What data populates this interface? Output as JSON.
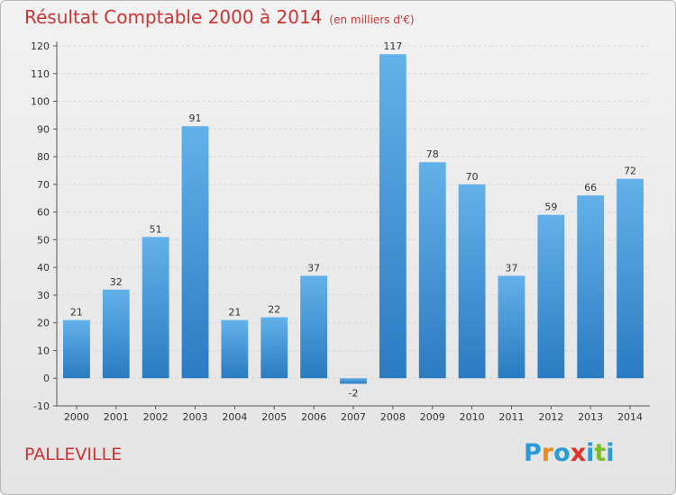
{
  "header": {
    "title": "Résultat Comptable 2000 à 2014",
    "unit": "(en milliers d'€)"
  },
  "footer": {
    "city": "PALLEVILLE",
    "logo": "Proxiti",
    "logo_letters": [
      {
        "ch": "P",
        "color": "#2a9ad8"
      },
      {
        "ch": "r",
        "color": "#f08a1a"
      },
      {
        "ch": "o",
        "color": "#2a9ad8"
      },
      {
        "ch": "x",
        "color": "#e0332a"
      },
      {
        "ch": "i",
        "color": "#2a9ad8"
      },
      {
        "ch": "t",
        "color": "#7cbb2a"
      },
      {
        "ch": "i",
        "color": "#2a9ad8"
      }
    ]
  },
  "colors": {
    "bar_light": "#63b1ea",
    "bar_dark": "#2a7bc1",
    "title": "#cc3333",
    "text": "#333333",
    "grid": "#d7d7d7"
  },
  "chart_data": {
    "type": "bar",
    "categories": [
      "2000",
      "2001",
      "2002",
      "2003",
      "2004",
      "2005",
      "2006",
      "2007",
      "2008",
      "2009",
      "2010",
      "2011",
      "2012",
      "2013",
      "2014"
    ],
    "values": [
      21,
      32,
      51,
      91,
      21,
      22,
      37,
      -2,
      117,
      78,
      70,
      37,
      59,
      66,
      72
    ],
    "ylim": [
      -10,
      120
    ],
    "yticks": [
      -10,
      0,
      10,
      20,
      30,
      40,
      50,
      60,
      70,
      80,
      90,
      100,
      110,
      120
    ],
    "grid": true,
    "xlabel": "",
    "ylabel": ""
  }
}
